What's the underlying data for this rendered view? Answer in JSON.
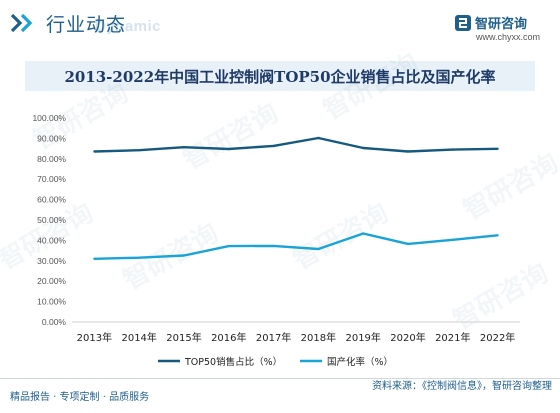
{
  "header": {
    "title": "行业动态",
    "ghost_text": "Dynamic",
    "brand_name": "智研咨询",
    "brand_url": "www.chyxx.com"
  },
  "colors": {
    "primary": "#1f5f8b",
    "series_top50": "#16587e",
    "series_domestic": "#1aa3d6",
    "title_band": "#e9f1f8"
  },
  "chart_data": {
    "type": "line",
    "title": "2013-2022年中国工业控制阀TOP50企业销售占比及国产化率",
    "categories": [
      "2013年",
      "2014年",
      "2015年",
      "2016年",
      "2017年",
      "2018年",
      "2019年",
      "2020年",
      "2021年",
      "2022年"
    ],
    "yticks": [
      "0.00%",
      "10.00%",
      "20.00%",
      "30.00%",
      "40.00%",
      "50.00%",
      "60.00%",
      "70.00%",
      "80.00%",
      "90.00%",
      "100.00%"
    ],
    "ylim": [
      0,
      100
    ],
    "grid": false,
    "legend_position": "bottom",
    "series": [
      {
        "name": "TOP50销售占比（%）",
        "color": "#16587e",
        "values": [
          83.6,
          84.2,
          85.7,
          84.8,
          86.3,
          90.2,
          85.3,
          83.6,
          84.5,
          84.9
        ]
      },
      {
        "name": "国产化率（%）",
        "color": "#1aa3d6",
        "values": [
          31.0,
          31.5,
          32.6,
          37.2,
          37.3,
          35.8,
          43.4,
          38.3,
          40.3,
          42.5
        ]
      }
    ]
  },
  "footer": {
    "left_text": "精品报告 · 专项定制 · 品质服务",
    "source_text": "资料来源：《控制阀信息》，智研咨询整理"
  },
  "watermark_text": "智研咨询"
}
